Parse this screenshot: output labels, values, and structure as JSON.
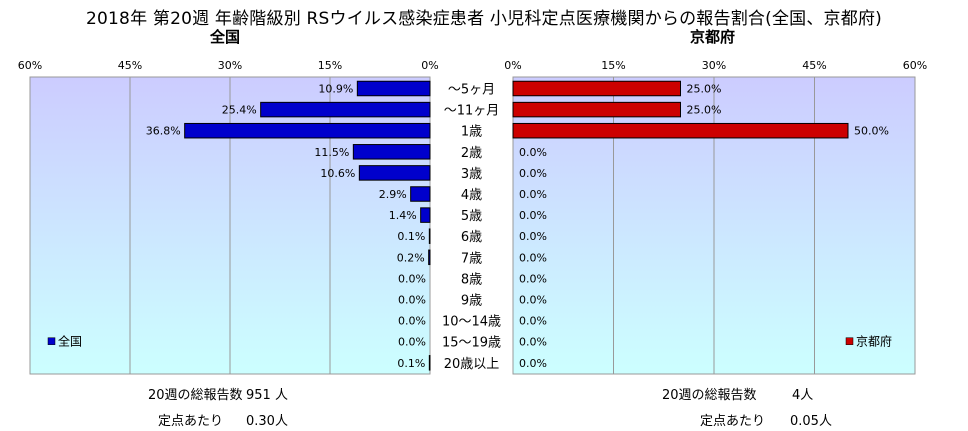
{
  "title": "2018年 第20週 年齢階級別 RSウイルス感染症患者 小児科定点医療機関からの報告割合(全国、京都府)",
  "colors": {
    "national": "#0000cc",
    "kyoto": "#cc0000",
    "bg_top": "#ccccff",
    "bg_bottom": "#ccffff"
  },
  "chart_data": [
    {
      "type": "bar",
      "orientation": "horizontal",
      "direction": "right-to-left",
      "title": "全国",
      "legend": "全国",
      "legend_position": "bottom-left",
      "xlim": [
        0,
        60
      ],
      "x_ticks": [
        "60%",
        "45%",
        "30%",
        "15%",
        "0%"
      ],
      "categories": [
        "～5ヶ月",
        "～11ヶ月",
        "1歳",
        "2歳",
        "3歳",
        "4歳",
        "5歳",
        "6歳",
        "7歳",
        "8歳",
        "9歳",
        "10～14歳",
        "15～19歳",
        "20歳以上"
      ],
      "values": [
        10.9,
        25.4,
        36.8,
        11.5,
        10.6,
        2.9,
        1.4,
        0.1,
        0.2,
        0.0,
        0.0,
        0.0,
        0.0,
        0.1
      ],
      "labels": [
        "10.9%",
        "25.4%",
        "36.8%",
        "11.5%",
        "10.6%",
        "2.9%",
        "1.4%",
        "0.1%",
        "0.2%",
        "0.0%",
        "0.0%",
        "0.0%",
        "0.0%",
        "0.1%"
      ],
      "grid": true
    },
    {
      "type": "bar",
      "orientation": "horizontal",
      "direction": "left-to-right",
      "title": "京都府",
      "legend": "京都府",
      "legend_position": "bottom-right",
      "xlim": [
        0,
        60
      ],
      "x_ticks": [
        "0%",
        "15%",
        "30%",
        "45%",
        "60%"
      ],
      "categories": [
        "～5ヶ月",
        "～11ヶ月",
        "1歳",
        "2歳",
        "3歳",
        "4歳",
        "5歳",
        "6歳",
        "7歳",
        "8歳",
        "9歳",
        "10～14歳",
        "15～19歳",
        "20歳以上"
      ],
      "values": [
        25.0,
        25.0,
        50.0,
        0.0,
        0.0,
        0.0,
        0.0,
        0.0,
        0.0,
        0.0,
        0.0,
        0.0,
        0.0,
        0.0
      ],
      "labels": [
        "25.0%",
        "25.0%",
        "50.0%",
        "0.0%",
        "0.0%",
        "0.0%",
        "0.0%",
        "0.0%",
        "0.0%",
        "0.0%",
        "0.0%",
        "0.0%",
        "0.0%",
        "0.0%"
      ],
      "grid": true
    }
  ],
  "footer": {
    "national": {
      "total_label": "20週の総報告数",
      "total_value": "951 人",
      "per_label": "定点あたり",
      "per_value": "0.30人"
    },
    "kyoto": {
      "total_label": "20週の総報告数",
      "total_value": "4人",
      "per_label": "定点あたり",
      "per_value": "0.05人"
    }
  }
}
